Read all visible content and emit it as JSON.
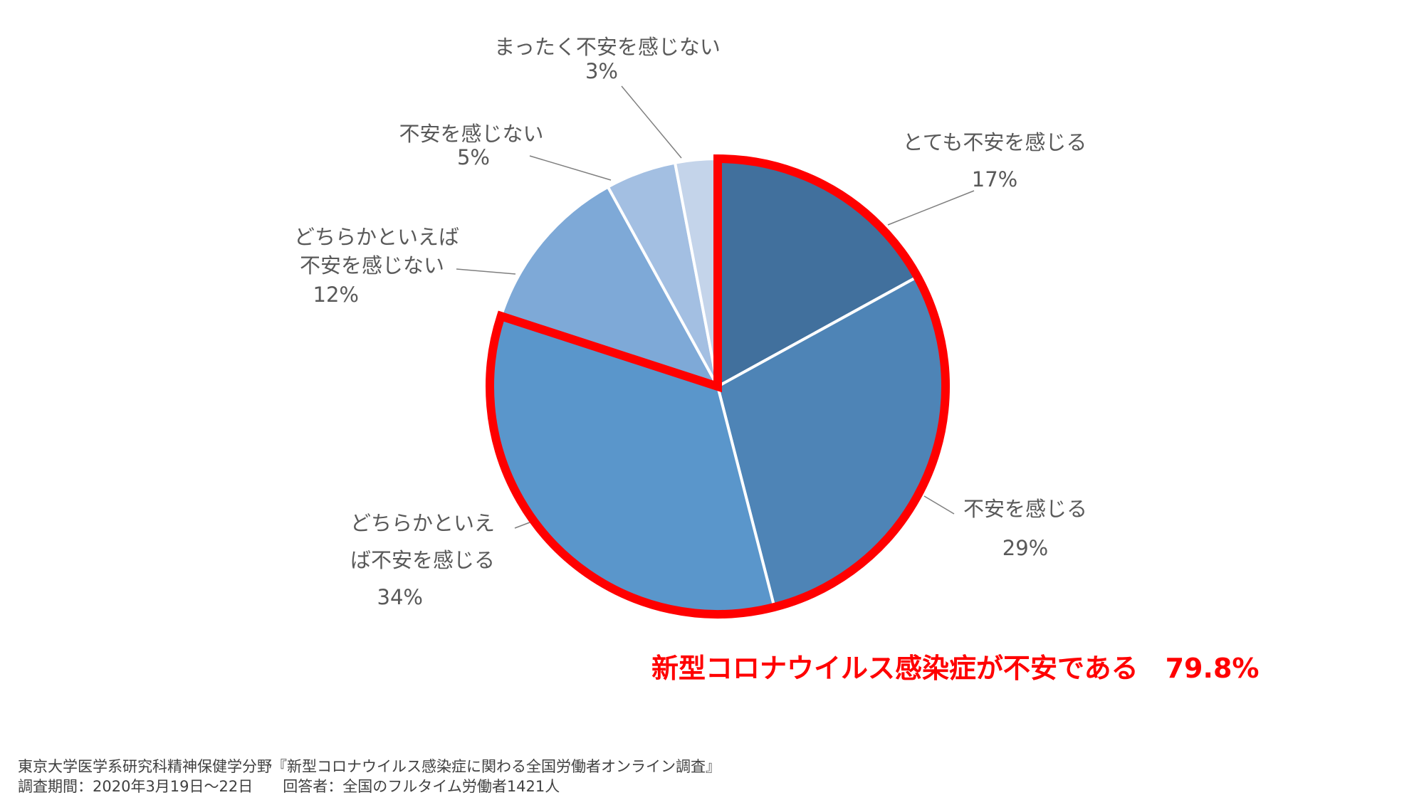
{
  "chart_data": {
    "type": "pie",
    "slices": [
      {
        "label_lines": [
          "とても不安を感じる"
        ],
        "value_label": "17%",
        "value": 17.0,
        "color": "#41709d"
      },
      {
        "label_lines": [
          "不安を感じる"
        ],
        "value_label": "29%",
        "value": 29.0,
        "color": "#4e84b6"
      },
      {
        "label_lines": [
          "どちらかといえ",
          "ば不安を感じる"
        ],
        "value_label": "34%",
        "value": 34.0,
        "color": "#5a96cb"
      },
      {
        "label_lines": [
          "どちらかといえば",
          "不安を感じない"
        ],
        "value_label": "12%",
        "value": 12.0,
        "color": "#7ea9d7"
      },
      {
        "label_lines": [
          "不安を感じない"
        ],
        "value_label": "5%",
        "value": 5.0,
        "color": "#a3bfe2"
      },
      {
        "label_lines": [
          "まったく不安を感じない"
        ],
        "value_label": "3%",
        "value": 3.0,
        "color": "#c4d4ea"
      }
    ],
    "start_angle_deg": 0,
    "direction": "clockwise",
    "highlight": {
      "slices": [
        0,
        1,
        2
      ],
      "color": "#ff0000",
      "text": "新型コロナウイルス感染症が不安である　79.8%"
    }
  },
  "source": {
    "line1": "東京大学医学系研究科精神保健学分野『新型コロナウイルス感染症に関わる全国労働者オンライン調査』",
    "line2": "調査期間：2020年3月19日～22日　　回答者：全国のフルタイム労働者1421人"
  }
}
